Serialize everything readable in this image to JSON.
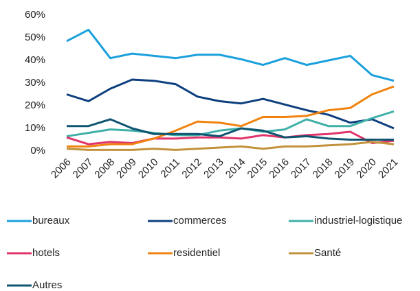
{
  "chart_data": {
    "type": "line",
    "categories": [
      "2006",
      "2007",
      "2008",
      "2009",
      "2010",
      "2011",
      "2012",
      "2013",
      "2014",
      "2015",
      "2016",
      "2017",
      "2018",
      "2019",
      "2020",
      "2021"
    ],
    "ylim": [
      0,
      60
    ],
    "yticks": [
      {
        "value": 0,
        "label": "0%"
      },
      {
        "value": 10,
        "label": "10%"
      },
      {
        "value": 20,
        "label": "20%"
      },
      {
        "value": 30,
        "label": "30%"
      },
      {
        "value": 40,
        "label": "40%"
      },
      {
        "value": 50,
        "label": "50%"
      },
      {
        "value": 60,
        "label": "60%"
      }
    ],
    "legend": "bottom",
    "series": [
      {
        "name": "bureaux",
        "color": "#1aa0dc",
        "values": [
          48.5,
          53.5,
          41,
          43,
          42,
          41,
          42.5,
          42.5,
          40.5,
          38,
          41,
          38,
          40,
          42,
          33.5,
          31
        ]
      },
      {
        "name": "commerces",
        "color": "#0d3f7f",
        "values": [
          25,
          22,
          27.5,
          31.5,
          31,
          29.5,
          24,
          22,
          21,
          23,
          20.5,
          18,
          16,
          12.5,
          14,
          10
        ]
      },
      {
        "name": "industriel-logistique",
        "color": "#3fb0a8",
        "values": [
          6.5,
          8,
          9.5,
          9,
          8,
          7,
          7,
          9,
          10,
          8.5,
          9.5,
          14,
          11,
          11,
          14.5,
          17.5
        ]
      },
      {
        "name": "hotels",
        "color": "#e0356a",
        "values": [
          6,
          3,
          4,
          3.5,
          5.5,
          5.5,
          6,
          6,
          5.5,
          7,
          6,
          7,
          7.5,
          8.5,
          3.5,
          4.5
        ]
      },
      {
        "name": "residentiel",
        "color": "#f0830f",
        "values": [
          2,
          2,
          3,
          3,
          5.5,
          9,
          13,
          12.5,
          11,
          15,
          15,
          15.5,
          18,
          19,
          25,
          28.5
        ]
      },
      {
        "name": "Santé",
        "color": "#c2913b",
        "values": [
          1,
          0.5,
          0.5,
          0.5,
          1,
          0.5,
          1,
          1.5,
          2,
          1,
          2,
          2,
          2.5,
          3,
          4,
          3
        ]
      },
      {
        "name": "Autres",
        "color": "#0f5570",
        "values": [
          11,
          11,
          14,
          10,
          7.5,
          7.5,
          7.5,
          6.5,
          10,
          9,
          6,
          6.5,
          5.5,
          5,
          5,
          5
        ]
      }
    ]
  }
}
